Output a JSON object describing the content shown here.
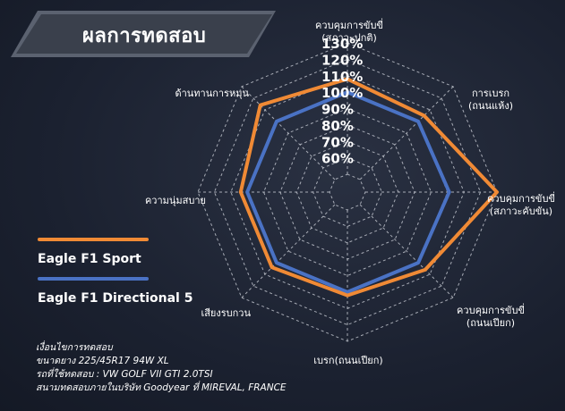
{
  "title": "ผลการทดสอบ",
  "chart_data": {
    "type": "radar",
    "axes": [
      "ควบคุมการขับขี่ (สภาวะปกติ)",
      "การเบรก (ถนนแห้ง)",
      "ควบคุมการขับขี่ (สภาวะคับขัน)",
      "ควบคุมการขับขี่ (ถนนเปียก)",
      "เบรก(ถนนเปียก)",
      "เสียงรบกวน",
      "ความนุ่มสบาย",
      "ด้านทานการหมุน"
    ],
    "axis_label_lines": [
      [
        "ควบคุมการขับขี่",
        "(สภาวะปกติ)"
      ],
      [
        "การเบรก",
        "(ถนนแห้ง)"
      ],
      [
        "ควบคุมการขับขี่",
        "(สภาวะคับขัน)"
      ],
      [
        "ควบคุมการขับขี่",
        "(ถนนเปียก)"
      ],
      [
        "เบรก(ถนนเปียก)"
      ],
      [
        "เสียงรบกวน"
      ],
      [
        "ความนุ่มสบาย"
      ],
      [
        "ด้านทานการหมุน"
      ]
    ],
    "ticks": [
      "60%",
      "70%",
      "80%",
      "90%",
      "100%",
      "110%",
      "120%",
      "130%"
    ],
    "range": [
      50,
      130
    ],
    "series": [
      {
        "name": "Eagle F1 Sport",
        "color": "#f08a35",
        "values": [
          108,
          105,
          130,
          106,
          102,
          104,
          104,
          114
        ]
      },
      {
        "name": "Eagle F1 Directional 5",
        "color": "#4a72c4",
        "values": [
          100,
          100,
          101,
          100,
          100,
          100,
          100,
          100
        ]
      }
    ]
  },
  "legend": [
    {
      "name": "Eagle F1 Sport",
      "color": "#f08a35"
    },
    {
      "name": "Eagle F1 Directional 5",
      "color": "#4a72c4"
    }
  ],
  "conditions": [
    "เงื่อนไขการทดสอบ",
    "ขนาดยาง 225/45R17 94W XL",
    "รถที่ใช้ทดสอบ : VW GOLF VII GTI 2.0TSI",
    "สนามทดสอบภายในบริษัท Goodyear ที่ MIREVAL, FRANCE"
  ]
}
